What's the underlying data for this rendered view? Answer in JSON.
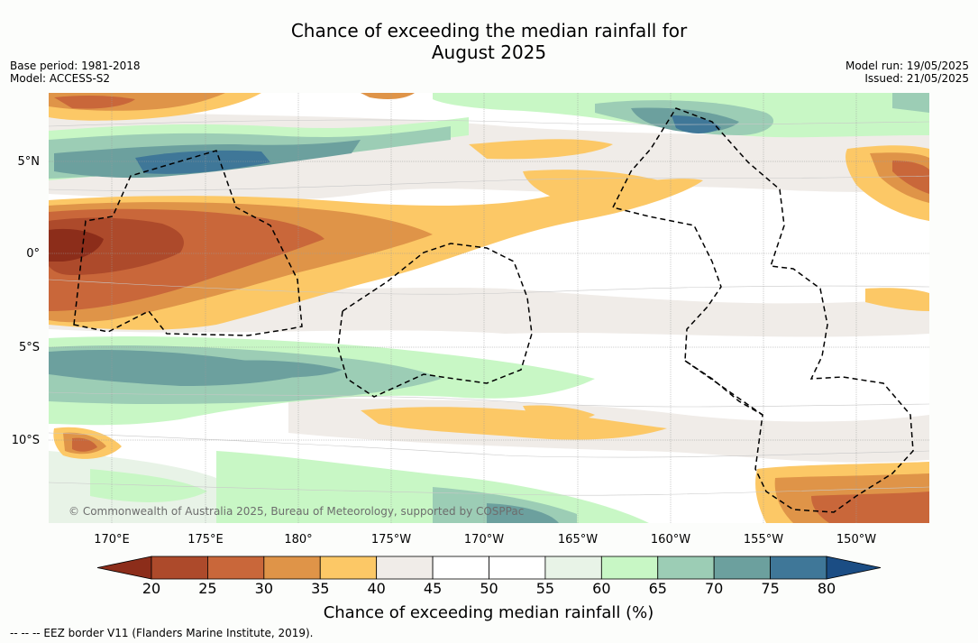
{
  "title_line1": "Chance of exceeding the median rainfall for",
  "title_line2": "August 2025",
  "meta_left": [
    "Base period: 1981-2018",
    "Model: ACCESS-S2"
  ],
  "meta_right": [
    "Model run: 19/05/2025",
    "Issued: 21/05/2025"
  ],
  "copyright": "© Commonwealth of Australia 2025, Bureau of Meteorology, supported by COSPPac",
  "footnote": "--  --  -- EEZ border V11 (Flanders Marine Institute, 2019).",
  "lon_labels": [
    "170°E",
    "175°E",
    "180°",
    "175°W",
    "170°W",
    "165°W",
    "160°W",
    "155°W",
    "150°W"
  ],
  "lat_labels": [
    "5°N",
    "0°",
    "5°S",
    "10°S"
  ],
  "colorbar": {
    "title": "Chance of exceeding median rainfall (%)",
    "ticks": [
      "20",
      "25",
      "30",
      "35",
      "40",
      "45",
      "50",
      "55",
      "60",
      "65",
      "70",
      "75",
      "80"
    ],
    "colors": [
      "#8c2d1a",
      "#ad4a2b",
      "#c9673a",
      "#df9448",
      "#fcc866",
      "#f0ece8",
      "#ffffff",
      "#ffffff",
      "#e8f3e7",
      "#c8f7c5",
      "#9ccdb5",
      "#6ca09e",
      "#3f7798",
      "#1b4d84"
    ]
  },
  "chart_data": {
    "type": "heatmap",
    "lon_range": [
      "167°E",
      "146°W"
    ],
    "lat_range": [
      "14°S",
      "8°N"
    ],
    "levels": [
      20,
      25,
      30,
      35,
      40,
      45,
      50,
      55,
      60,
      65,
      70,
      75,
      80
    ]
  }
}
